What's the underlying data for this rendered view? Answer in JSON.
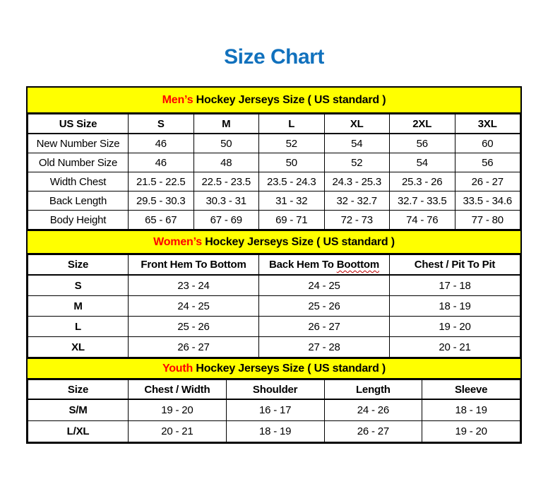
{
  "title": "Size Chart",
  "colors": {
    "title_blue": "#1171BD",
    "band_yellow": "#FFFF00",
    "accent_red": "#FF0000",
    "squiggle_red": "#C00000",
    "border_black": "#000000",
    "background": "#FFFFFF"
  },
  "sections": [
    {
      "name": "mens",
      "band_highlight": "Men’s",
      "band_rest": " Hockey Jerseys Size ( US standard )",
      "columns": [
        {
          "label": "US Size"
        },
        {
          "label": "S"
        },
        {
          "label": "M"
        },
        {
          "label": "L"
        },
        {
          "label": "XL"
        },
        {
          "label": "2XL"
        },
        {
          "label": "3XL"
        }
      ],
      "rows": [
        {
          "label": "New Number Size",
          "values": [
            "46",
            "50",
            "52",
            "54",
            "56",
            "60"
          ]
        },
        {
          "label": "Old Number Size",
          "values": [
            "46",
            "48",
            "50",
            "52",
            "54",
            "56"
          ]
        },
        {
          "label": "Width Chest",
          "values": [
            "21.5 - 22.5",
            "22.5 - 23.5",
            "23.5 - 24.3",
            "24.3 - 25.3",
            "25.3 - 26",
            "26 - 27"
          ]
        },
        {
          "label": "Back Length",
          "values": [
            "29.5 - 30.3",
            "30.3 - 31",
            "31 - 32",
            "32 - 32.7",
            "32.7 - 33.5",
            "33.5 - 34.6"
          ]
        },
        {
          "label": "Body Height",
          "values": [
            "65 - 67",
            "67 - 69",
            "69 - 71",
            "72 - 73",
            "74 - 76",
            "77 - 80"
          ]
        }
      ]
    },
    {
      "name": "womens",
      "band_highlight": "Women’s",
      "band_rest": " Hockey Jerseys Size ( US standard )",
      "columns": [
        {
          "label": "Size"
        },
        {
          "label": "Front Hem To Bottom"
        },
        {
          "label": "Back Hem To Boottom",
          "prefix": "Back Hem To ",
          "squiggle": "Boottom"
        },
        {
          "label": "Chest / Pit To Pit"
        }
      ],
      "rows": [
        {
          "label": "S",
          "values": [
            "23 - 24",
            "24 - 25",
            "17 - 18"
          ]
        },
        {
          "label": "M",
          "values": [
            "24 - 25",
            "25 - 26",
            "18 - 19"
          ]
        },
        {
          "label": "L",
          "values": [
            "25 - 26",
            "26 - 27",
            "19 - 20"
          ]
        },
        {
          "label": "XL",
          "values": [
            "26 - 27",
            "27 - 28",
            "20 - 21"
          ]
        }
      ]
    },
    {
      "name": "youth",
      "band_highlight": "Youth",
      "band_rest": " Hockey Jerseys Size ( US standard )",
      "columns": [
        {
          "label": "Size"
        },
        {
          "label": "Chest / Width"
        },
        {
          "label": "Shoulder"
        },
        {
          "label": "Length"
        },
        {
          "label": "Sleeve"
        }
      ],
      "rows": [
        {
          "label": "S/M",
          "values": [
            "19 - 20",
            "16 - 17",
            "24 - 26",
            "18 - 19"
          ]
        },
        {
          "label": "L/XL",
          "values": [
            "20 - 21",
            "18 - 19",
            "26 - 27",
            "19 - 20"
          ]
        }
      ]
    }
  ]
}
